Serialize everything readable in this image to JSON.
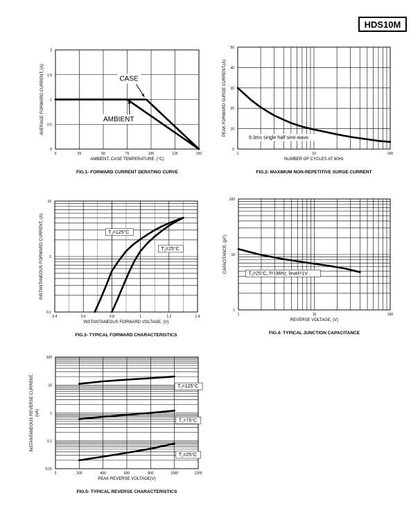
{
  "header": {
    "part_number": "HDS10M"
  },
  "chart_data": [
    {
      "id": "fig1",
      "type": "line",
      "caption": "FIG.1- FORWARD CURRENT DERATING CURVE",
      "xlabel": "AMBIENT, CASE TEMPERATURE, (°C)",
      "ylabel": "AVERAGE FORWARD CURRENT, (A)",
      "xlim": [
        0,
        150
      ],
      "ylim": [
        0,
        2
      ],
      "xticks": [
        0,
        25,
        50,
        75,
        100,
        125,
        150
      ],
      "yticks": [
        0,
        0.5,
        1,
        1.5,
        2
      ],
      "xtick_labels": [
        "0",
        "25",
        "50",
        "75",
        "100",
        "125",
        "150"
      ],
      "ytick_labels": [
        "0",
        "0.5",
        "1",
        "1.5",
        "2"
      ],
      "grid": true,
      "series": [
        {
          "name": "CASE",
          "x": [
            0,
            95,
            150
          ],
          "y": [
            1,
            1,
            0
          ]
        },
        {
          "name": "AMBIENT",
          "x": [
            0,
            75,
            150
          ],
          "y": [
            1,
            1,
            0
          ]
        }
      ],
      "annotations": [
        {
          "text": "CASE",
          "x": 67,
          "y": 1.38,
          "arrow_to": [
            93,
            1.05
          ]
        },
        {
          "text": "AMBIENT",
          "x": 50,
          "y": 0.56,
          "arrow_to": [
            77,
            0.98
          ]
        }
      ]
    },
    {
      "id": "fig2",
      "type": "line",
      "caption": "FIG.2- MAXIMUM NON-REPETITIVE SURGE CURRENT",
      "xlabel": "NUMBER OF CYCLES AT 60Hz",
      "ylabel": "PEAK FORWARD SURGE CURRENT,(A)",
      "xscale": "log",
      "xlim": [
        1,
        100
      ],
      "ylim": [
        0,
        50
      ],
      "xticks": [
        1,
        10,
        100
      ],
      "yticks": [
        0,
        10,
        20,
        30,
        40,
        50
      ],
      "xtick_labels": [
        "1",
        "10",
        "100"
      ],
      "ytick_labels": [
        "0",
        "10",
        "20",
        "30",
        "40",
        "50"
      ],
      "grid": true,
      "series": [
        {
          "name": "",
          "x": [
            1,
            1.5,
            2,
            3,
            5,
            7,
            10,
            15,
            20,
            30,
            50,
            70,
            100
          ],
          "y": [
            30,
            24,
            20.5,
            16.5,
            12.8,
            11,
            9.6,
            8.2,
            7.2,
            6,
            4.8,
            4,
            3.5
          ]
        }
      ],
      "annotations": [
        {
          "text": "8.3ms single half sine-wave",
          "x": 1.4,
          "y": 5
        }
      ]
    },
    {
      "id": "fig3",
      "type": "line",
      "caption": "FIG.3- TYPICAL FORWARD CHARACTERISTICS",
      "xlabel": "INSTANTANEOUS FORWARD VOLTAGE, (V)",
      "ylabel": "INSTANTANEOUS FORWARD CURRENT, (A)",
      "yscale": "log",
      "xlim": [
        0.4,
        1.4
      ],
      "ylim": [
        0.1,
        10
      ],
      "xticks": [
        0.4,
        0.6,
        0.8,
        1,
        1.2,
        1.4
      ],
      "yticks": [
        0.1,
        1,
        10
      ],
      "xtick_labels": [
        "0.4",
        "0.6",
        "0.8",
        "1",
        "1.2",
        "1.4"
      ],
      "ytick_labels": [
        "0.1",
        "1",
        "10"
      ],
      "grid": true,
      "series": [
        {
          "name": "TJ=125°C",
          "x": [
            0.68,
            0.72,
            0.76,
            0.8,
            0.85,
            0.9,
            0.95,
            1,
            1.05,
            1.1,
            1.15,
            1.2,
            1.25,
            1.3
          ],
          "y": [
            0.1,
            0.17,
            0.3,
            0.55,
            0.85,
            1.25,
            1.65,
            2.05,
            2.5,
            3,
            3.5,
            4,
            4.5,
            5
          ]
        },
        {
          "name": "TJ=25°C",
          "x": [
            0.8,
            0.84,
            0.88,
            0.92,
            0.96,
            1,
            1.05,
            1.1,
            1.15,
            1.2,
            1.25,
            1.3
          ],
          "y": [
            0.1,
            0.17,
            0.3,
            0.52,
            0.85,
            1.25,
            1.75,
            2.3,
            2.9,
            3.6,
            4.3,
            5
          ]
        }
      ],
      "annotations": [
        {
          "text": "TJ=125°C",
          "x": 0.77,
          "y": 2.6
        },
        {
          "text": "TJ=25°C",
          "x": 1.14,
          "y": 1.3
        }
      ]
    },
    {
      "id": "fig4",
      "type": "line",
      "caption": "FIG.4- TYPICAL JUNCTION CAPACITANCE",
      "xlabel": "REVERSE VOLTAGE, (V)",
      "ylabel": "CAPACITANCE, (pF)",
      "xscale": "log",
      "yscale": "log",
      "xlim": [
        1,
        100
      ],
      "ylim": [
        1,
        100
      ],
      "xticks": [
        1,
        10,
        100
      ],
      "yticks": [
        1,
        10,
        100
      ],
      "xtick_labels": [
        "1",
        "10",
        "100"
      ],
      "ytick_labels": [
        "1",
        "10",
        "100"
      ],
      "grid": true,
      "series": [
        {
          "name": "",
          "x": [
            1,
            2,
            4,
            8,
            15,
            25,
            40
          ],
          "y": [
            12.5,
            9.8,
            8.2,
            7.1,
            6.3,
            5.6,
            4.8
          ]
        }
      ],
      "annotations": [
        {
          "text": "TJ=25°C, f=1MHz, level=1V",
          "x": 1.3,
          "y": 4.3
        }
      ]
    },
    {
      "id": "fig5",
      "type": "line",
      "caption": "FIG.5- TYPICAL REVERSE CHARACTERISTICS",
      "xlabel": "PEAK REVERSE VOLTAGE(V)",
      "ylabel": "INSTANTANEOUS REVERSE CURRENT,(uA)",
      "yscale": "log",
      "xlim": [
        0,
        1200
      ],
      "ylim": [
        0.01,
        100
      ],
      "xticks": [
        0,
        200,
        400,
        600,
        800,
        1000,
        1200
      ],
      "yticks": [
        0.01,
        0.1,
        1,
        10,
        100
      ],
      "xtick_labels": [
        "0",
        "200",
        "400",
        "600",
        "800",
        "1000",
        "1200"
      ],
      "ytick_labels": [
        "0.01",
        "0.1",
        "1",
        "10",
        "100"
      ],
      "grid": true,
      "series": [
        {
          "name": "TJ=125°C",
          "x": [
            200,
            400,
            600,
            800,
            1000
          ],
          "y": [
            11,
            13.5,
            15.5,
            17.5,
            20
          ]
        },
        {
          "name": "TJ=75°C",
          "x": [
            200,
            400,
            600,
            800,
            1000
          ],
          "y": [
            0.6,
            0.72,
            0.85,
            1,
            1.2
          ]
        },
        {
          "name": "TJ=25°C",
          "x": [
            200,
            400,
            600,
            800,
            1000
          ],
          "y": [
            0.02,
            0.027,
            0.037,
            0.052,
            0.08
          ]
        }
      ],
      "annotations": [
        {
          "text": "TJ=125°C",
          "x": 1020,
          "y": 8
        },
        {
          "text": "TJ=75°C",
          "x": 1030,
          "y": 0.48
        },
        {
          "text": "TJ=25°C",
          "x": 1030,
          "y": 0.028
        }
      ]
    }
  ]
}
